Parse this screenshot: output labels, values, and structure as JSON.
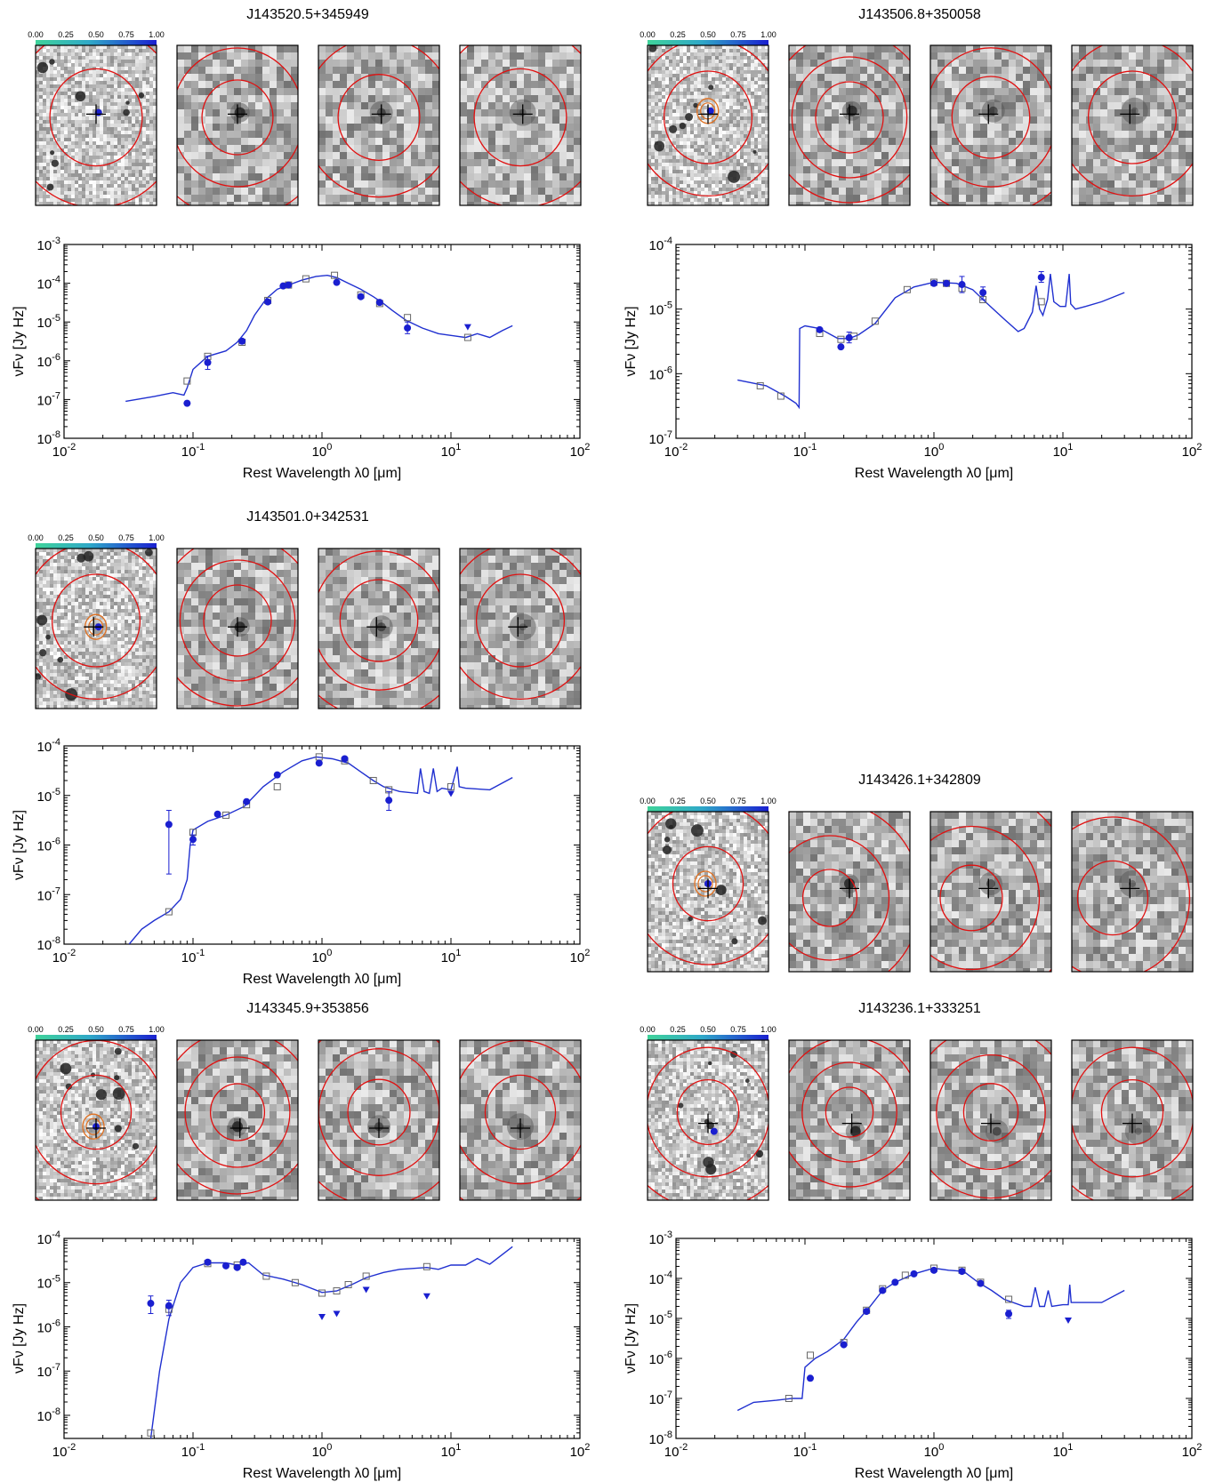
{
  "chart_data": [
    {
      "type": "scatter",
      "title": "J143520.5+345949",
      "colorbar_ticks": [
        "0.00",
        "0.25",
        "0.50",
        "0.75",
        "1.00"
      ],
      "xlabel": "Rest Wavelength λ0 [μm]",
      "ylabel": "νFν [Jy Hz]",
      "x_scale": "log",
      "y_scale": "log",
      "xlim": [
        0.01,
        100
      ],
      "ylim": [
        1e-08,
        0.001
      ],
      "x_ticks": [
        "10-2",
        "10-1",
        "100",
        "101",
        "102"
      ],
      "y_ticks": [
        "10-8",
        "10-7",
        "10-6",
        "10-5",
        "10-4",
        "10-3"
      ],
      "model": {
        "x": [
          0.03,
          0.05,
          0.07,
          0.085,
          0.09,
          0.1,
          0.13,
          0.18,
          0.22,
          0.26,
          0.3,
          0.37,
          0.45,
          0.55,
          0.7,
          0.9,
          1.1,
          1.3,
          1.6,
          2.0,
          2.5,
          3.0,
          3.5,
          4.5,
          6.0,
          8.0,
          10.0,
          13.0,
          16.0,
          20.0,
          25.0,
          30.0
        ],
        "y": [
          9e-08,
          1.2e-07,
          1.5e-07,
          1.3e-07,
          2e-07,
          6e-07,
          1.3e-06,
          1.8e-06,
          3e-06,
          6e-06,
          1.5e-05,
          4e-05,
          7e-05,
          9e-05,
          0.00012,
          0.00015,
          0.00016,
          0.00014,
          0.0001,
          7e-05,
          4.5e-05,
          3e-05,
          2e-05,
          1.1e-05,
          7e-06,
          5e-06,
          4.5e-06,
          4e-06,
          5e-06,
          4e-06,
          6e-06,
          8e-06
        ]
      },
      "observed": [
        [
          0.09,
          8e-08
        ],
        [
          0.13,
          9e-07
        ],
        [
          0.24,
          3.2e-06
        ],
        [
          0.38,
          3.3e-05
        ],
        [
          0.5,
          8.5e-05
        ],
        [
          0.55,
          9e-05
        ],
        [
          1.3,
          0.000105
        ],
        [
          2.0,
          4.5e-05
        ],
        [
          2.8,
          3.2e-05
        ],
        [
          4.6,
          7e-06
        ]
      ],
      "observed_err": [
        null,
        [
          6e-07,
          1.3e-06
        ],
        null,
        null,
        null,
        null,
        null,
        null,
        null,
        [
          5e-06,
          1e-05
        ]
      ],
      "upper_limits": [
        [
          13.5,
          7.5e-06
        ]
      ],
      "synthetic": [
        [
          0.09,
          3e-07
        ],
        [
          0.13,
          1.3e-06
        ],
        [
          0.24,
          3e-06
        ],
        [
          0.38,
          3.6e-05
        ],
        [
          0.55,
          9e-05
        ],
        [
          0.75,
          0.00013
        ],
        [
          1.25,
          0.00016
        ],
        [
          2.0,
          5e-05
        ],
        [
          2.8,
          3e-05
        ],
        [
          4.6,
          1.3e-05
        ],
        [
          13.5,
          4e-06
        ]
      ]
    },
    {
      "type": "scatter",
      "title": "J143506.8+350058",
      "colorbar_ticks": [
        "0.00",
        "0.25",
        "0.50",
        "0.75",
        "1.00"
      ],
      "xlabel": "Rest Wavelength λ0 [μm]",
      "ylabel": "νFν [Jy Hz]",
      "x_scale": "log",
      "y_scale": "log",
      "xlim": [
        0.01,
        100
      ],
      "ylim": [
        1e-07,
        0.0001
      ],
      "x_ticks": [
        "10-2",
        "10-1",
        "100",
        "101",
        "102"
      ],
      "y_ticks": [
        "10-7",
        "10-6",
        "10-5",
        "10-4"
      ],
      "model": {
        "x": [
          0.03,
          0.05,
          0.07,
          0.085,
          0.09,
          0.091,
          0.1,
          0.13,
          0.18,
          0.22,
          0.26,
          0.35,
          0.5,
          0.7,
          1.0,
          1.5,
          2.0,
          2.5,
          3.5,
          4.5,
          5.0,
          5.8,
          6.2,
          6.6,
          7.0,
          7.6,
          8.0,
          8.5,
          9.5,
          10.5,
          11.2,
          11.5,
          12.5,
          15.0,
          20.0,
          30.0
        ],
        "y": [
          8e-07,
          6.5e-07,
          4.5e-07,
          3.5e-07,
          3e-07,
          5e-06,
          5.5e-06,
          5e-06,
          3.5e-06,
          3.5e-06,
          4e-06,
          6e-06,
          1.5e-05,
          2.2e-05,
          2.6e-05,
          2.5e-05,
          2e-05,
          1.3e-05,
          7e-06,
          4.5e-06,
          5e-06,
          9e-06,
          2.3e-05,
          1e-05,
          8e-06,
          1.4e-05,
          3.5e-05,
          1.3e-05,
          1.1e-05,
          1.1e-05,
          3.5e-05,
          1.2e-05,
          1e-05,
          1.1e-05,
          1.3e-05,
          1.8e-05
        ]
      },
      "observed": [
        [
          0.13,
          4.8e-06
        ],
        [
          0.19,
          2.6e-06
        ],
        [
          0.22,
          3.6e-06
        ],
        [
          1.0,
          2.5e-05
        ],
        [
          1.25,
          2.5e-05
        ],
        [
          1.65,
          2.4e-05
        ],
        [
          2.4,
          1.8e-05
        ],
        [
          6.8,
          3.1e-05
        ]
      ],
      "observed_err": [
        null,
        null,
        [
          3e-06,
          4.4e-06
        ],
        null,
        null,
        [
          1.8e-05,
          3.2e-05
        ],
        [
          1.4e-05,
          2.2e-05
        ],
        [
          2.6e-05,
          3.8e-05
        ]
      ],
      "upper_limits": [],
      "synthetic": [
        [
          0.045,
          6.5e-07
        ],
        [
          0.065,
          4.5e-07
        ],
        [
          0.13,
          4.2e-06
        ],
        [
          0.19,
          3.4e-06
        ],
        [
          0.24,
          3.8e-06
        ],
        [
          0.35,
          6.5e-06
        ],
        [
          0.62,
          2e-05
        ],
        [
          1.0,
          2.6e-05
        ],
        [
          1.25,
          2.5e-05
        ],
        [
          1.65,
          2.1e-05
        ],
        [
          2.4,
          1.4e-05
        ],
        [
          6.8,
          1.3e-05
        ]
      ]
    },
    {
      "type": "scatter",
      "title": "J143501.0+342531",
      "colorbar_ticks": [
        "0.00",
        "0.25",
        "0.50",
        "0.75",
        "1.00"
      ],
      "xlabel": "Rest Wavelength λ0 [μm]",
      "ylabel": "νFν [Jy Hz]",
      "x_scale": "log",
      "y_scale": "log",
      "xlim": [
        0.01,
        100
      ],
      "ylim": [
        1e-08,
        0.0001
      ],
      "x_ticks": [
        "10-2",
        "10-1",
        "100",
        "101",
        "102"
      ],
      "y_ticks": [
        "10-8",
        "10-7",
        "10-6",
        "10-5",
        "10-4"
      ],
      "model": {
        "x": [
          0.032,
          0.04,
          0.05,
          0.065,
          0.08,
          0.09,
          0.095,
          0.1,
          0.13,
          0.18,
          0.25,
          0.35,
          0.5,
          0.7,
          0.9,
          1.2,
          1.6,
          2.0,
          2.5,
          3.0,
          4.0,
          5.5,
          5.8,
          6.2,
          6.8,
          7.3,
          7.8,
          8.5,
          10.0,
          11.2,
          11.6,
          13.0,
          20.0,
          30.0
        ],
        "y": [
          1e-08,
          2e-08,
          3e-08,
          4.5e-08,
          8e-08,
          2e-07,
          1e-06,
          2e-06,
          3e-06,
          4e-06,
          6e-06,
          1.5e-05,
          3e-05,
          5e-05,
          6e-05,
          5.5e-05,
          4.5e-05,
          3e-05,
          2e-05,
          1.5e-05,
          1.2e-05,
          1.1e-05,
          3.5e-05,
          1.2e-05,
          1.1e-05,
          3.5e-05,
          1.2e-05,
          1.4e-05,
          1.3e-05,
          3.8e-05,
          1.5e-05,
          1.4e-05,
          1.3e-05,
          2.3e-05
        ]
      },
      "observed": [
        [
          0.065,
          2.6e-06
        ],
        [
          0.1,
          1.3e-06
        ],
        [
          0.155,
          4.2e-06
        ],
        [
          0.26,
          7.5e-06
        ],
        [
          0.45,
          2.6e-05
        ],
        [
          0.95,
          4.5e-05
        ],
        [
          1.5,
          5.5e-05
        ],
        [
          3.3,
          8e-06
        ]
      ],
      "observed_err": [
        [
          2.6e-07,
          5e-06
        ],
        [
          1e-06,
          1.6e-06
        ],
        null,
        null,
        null,
        null,
        null,
        [
          5e-06,
          1.2e-05
        ]
      ],
      "upper_limits": [
        [
          10.0,
          1.1e-05
        ]
      ],
      "synthetic": [
        [
          0.065,
          4.5e-08
        ],
        [
          0.1,
          1.8e-06
        ],
        [
          0.18,
          4e-06
        ],
        [
          0.26,
          6.5e-06
        ],
        [
          0.45,
          1.5e-05
        ],
        [
          0.95,
          6e-05
        ],
        [
          1.5,
          5e-05
        ],
        [
          2.5,
          2e-05
        ],
        [
          3.3,
          1.3e-05
        ],
        [
          10.0,
          1.5e-05
        ]
      ]
    },
    {
      "type": "scatter",
      "title": "J143426.1+342809",
      "colorbar_ticks": [
        "0.00",
        "0.25",
        "0.50",
        "0.75",
        "1.00"
      ]
    },
    {
      "type": "scatter",
      "title": "J143345.9+353856",
      "colorbar_ticks": [
        "0.00",
        "0.25",
        "0.50",
        "0.75",
        "1.00"
      ],
      "xlabel": "Rest Wavelength λ0 [μm]",
      "ylabel": "νFν [Jy Hz]",
      "x_scale": "log",
      "y_scale": "log",
      "xlim": [
        0.01,
        100
      ],
      "ylim": [
        3e-09,
        0.0001
      ],
      "x_ticks": [
        "10-2",
        "10-1",
        "100",
        "101",
        "102"
      ],
      "y_ticks": [
        "10-8",
        "10-7",
        "10-6",
        "10-5",
        "10-4"
      ],
      "model": {
        "x": [
          0.047,
          0.055,
          0.065,
          0.08,
          0.1,
          0.13,
          0.18,
          0.22,
          0.27,
          0.35,
          0.5,
          0.7,
          1.0,
          1.3,
          1.7,
          2.2,
          3.0,
          4.0,
          6.5,
          8.0,
          10.0,
          13.0,
          16.0,
          20.0,
          30.0
        ],
        "y": [
          3e-09,
          1e-07,
          1.5e-06,
          1e-05,
          2.2e-05,
          2.8e-05,
          2.8e-05,
          2.5e-05,
          2.8e-05,
          1.5e-05,
          1.2e-05,
          9e-06,
          6e-06,
          6.5e-06,
          9e-06,
          1.3e-05,
          1.7e-05,
          2e-05,
          2.2e-05,
          2e-05,
          2.5e-05,
          2.5e-05,
          3.5e-05,
          2.6e-05,
          6.5e-05
        ]
      },
      "observed": [
        [
          0.047,
          3.4e-06
        ],
        [
          0.065,
          3e-06
        ],
        [
          0.13,
          2.9e-05
        ],
        [
          0.18,
          2.4e-05
        ],
        [
          0.22,
          2.2e-05
        ],
        [
          0.245,
          2.9e-05
        ]
      ],
      "observed_err": [
        [
          2e-06,
          5e-06
        ],
        [
          1.8e-06,
          4e-06
        ],
        null,
        null,
        null,
        null
      ],
      "upper_limits": [
        [
          1.0,
          1.7e-06
        ],
        [
          1.3,
          2e-06
        ],
        [
          2.2,
          7e-06
        ],
        [
          6.5,
          5e-06
        ]
      ],
      "synthetic": [
        [
          0.047,
          4e-09
        ],
        [
          0.065,
          2.5e-06
        ],
        [
          0.13,
          2.7e-05
        ],
        [
          0.22,
          2.5e-05
        ],
        [
          0.37,
          1.4e-05
        ],
        [
          0.62,
          1e-05
        ],
        [
          1.0,
          5.8e-06
        ],
        [
          1.3,
          6.5e-06
        ],
        [
          1.6,
          9e-06
        ],
        [
          2.2,
          1.4e-05
        ],
        [
          6.5,
          2.3e-05
        ]
      ]
    },
    {
      "type": "scatter",
      "title": "J143236.1+333251",
      "colorbar_ticks": [
        "0.00",
        "0.25",
        "0.50",
        "0.75",
        "1.00"
      ],
      "xlabel": "Rest Wavelength λ0 [μm]",
      "ylabel": "νFν [Jy Hz]",
      "x_scale": "log",
      "y_scale": "log",
      "xlim": [
        0.01,
        100
      ],
      "ylim": [
        1e-08,
        0.001
      ],
      "x_ticks": [
        "10-2",
        "10-1",
        "100",
        "101",
        "102"
      ],
      "y_ticks": [
        "10-8",
        "10-7",
        "10-6",
        "10-5",
        "10-4",
        "10-3"
      ],
      "model": {
        "x": [
          0.03,
          0.04,
          0.06,
          0.08,
          0.095,
          0.1,
          0.12,
          0.15,
          0.2,
          0.25,
          0.32,
          0.4,
          0.5,
          0.7,
          1.0,
          1.3,
          1.7,
          2.2,
          2.8,
          3.5,
          5.0,
          5.7,
          6.1,
          6.6,
          7.2,
          7.7,
          8.2,
          10.0,
          11.0,
          11.3,
          11.6,
          13.0,
          20.0,
          30.0
        ],
        "y": [
          5e-08,
          8e-08,
          9e-08,
          1e-07,
          1e-07,
          6e-07,
          1e-06,
          1.5e-06,
          3e-06,
          8e-06,
          2e-05,
          5e-05,
          8e-05,
          0.00013,
          0.00018,
          0.00016,
          0.00015,
          8e-05,
          5e-05,
          3e-05,
          2e-05,
          2e-05,
          6e-05,
          2e-05,
          2e-05,
          5e-05,
          2e-05,
          2.2e-05,
          2.2e-05,
          7e-05,
          2.5e-05,
          2.5e-05,
          2.5e-05,
          5e-05
        ]
      },
      "observed": [
        [
          0.11,
          3.2e-07
        ],
        [
          0.2,
          2.2e-06
        ],
        [
          0.3,
          1.5e-05
        ],
        [
          0.4,
          5e-05
        ],
        [
          0.5,
          8e-05
        ],
        [
          0.7,
          0.00013
        ],
        [
          1.0,
          0.00016
        ],
        [
          1.65,
          0.00015
        ],
        [
          2.3,
          7.5e-05
        ],
        [
          3.8,
          1.3e-05
        ]
      ],
      "observed_err": [
        null,
        null,
        null,
        null,
        null,
        null,
        null,
        null,
        null,
        [
          1e-05,
          1.6e-05
        ]
      ],
      "upper_limits": [
        [
          11.0,
          9e-06
        ]
      ],
      "synthetic": [
        [
          0.075,
          1e-07
        ],
        [
          0.11,
          1.2e-06
        ],
        [
          0.2,
          2.5e-06
        ],
        [
          0.3,
          1.6e-05
        ],
        [
          0.4,
          5.5e-05
        ],
        [
          0.6,
          0.00012
        ],
        [
          1.0,
          0.00018
        ],
        [
          1.65,
          0.00016
        ],
        [
          2.3,
          8e-05
        ],
        [
          3.8,
          3e-05
        ]
      ]
    }
  ]
}
